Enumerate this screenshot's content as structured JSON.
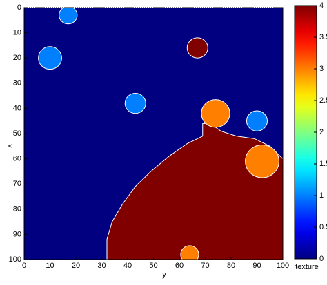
{
  "chart_data": {
    "type": "heatmap",
    "xlabel": "y",
    "ylabel": "x",
    "xlim": [
      0,
      100
    ],
    "ylim": [
      0,
      100
    ],
    "y_reversed": true,
    "xticks": [
      0,
      10,
      20,
      30,
      40,
      50,
      60,
      70,
      80,
      90,
      100
    ],
    "yticks": [
      0,
      10,
      20,
      30,
      40,
      50,
      60,
      70,
      80,
      90,
      100
    ],
    "colormap": "jet",
    "background": 0,
    "colorbar": {
      "label": "texture",
      "lim": [
        0,
        4
      ],
      "ticks": [
        0,
        0.5,
        1,
        1.5,
        2,
        2.5,
        3,
        3.5,
        4
      ]
    },
    "regions": [
      {
        "value": 4,
        "points": [
          [
            32,
            100
          ],
          [
            32,
            92
          ],
          [
            34,
            85
          ],
          [
            38,
            78
          ],
          [
            43,
            71
          ],
          [
            49,
            65
          ],
          [
            56,
            59
          ],
          [
            63,
            54
          ],
          [
            69,
            51
          ],
          [
            69,
            46
          ],
          [
            72,
            46
          ],
          [
            76,
            49
          ],
          [
            82,
            51
          ],
          [
            89,
            52
          ],
          [
            95,
            55
          ],
          [
            100,
            60
          ],
          [
            100,
            100
          ]
        ]
      },
      {
        "value": 1,
        "center": [
          17,
          3
        ],
        "radius": 3.5
      },
      {
        "value": 1,
        "center": [
          10,
          20
        ],
        "radius": 4.5
      },
      {
        "value": 1,
        "center": [
          43,
          38
        ],
        "radius": 4
      },
      {
        "value": 1,
        "center": [
          90,
          45
        ],
        "radius": 4
      },
      {
        "value": 4,
        "center": [
          67,
          16
        ],
        "radius": 4
      },
      {
        "value": 3,
        "center": [
          74,
          42
        ],
        "radius": 5.5
      },
      {
        "value": 3,
        "center": [
          92,
          61
        ],
        "radius": 6.5
      },
      {
        "value": 3,
        "center": [
          64,
          98
        ],
        "radius": 3.5
      }
    ]
  }
}
